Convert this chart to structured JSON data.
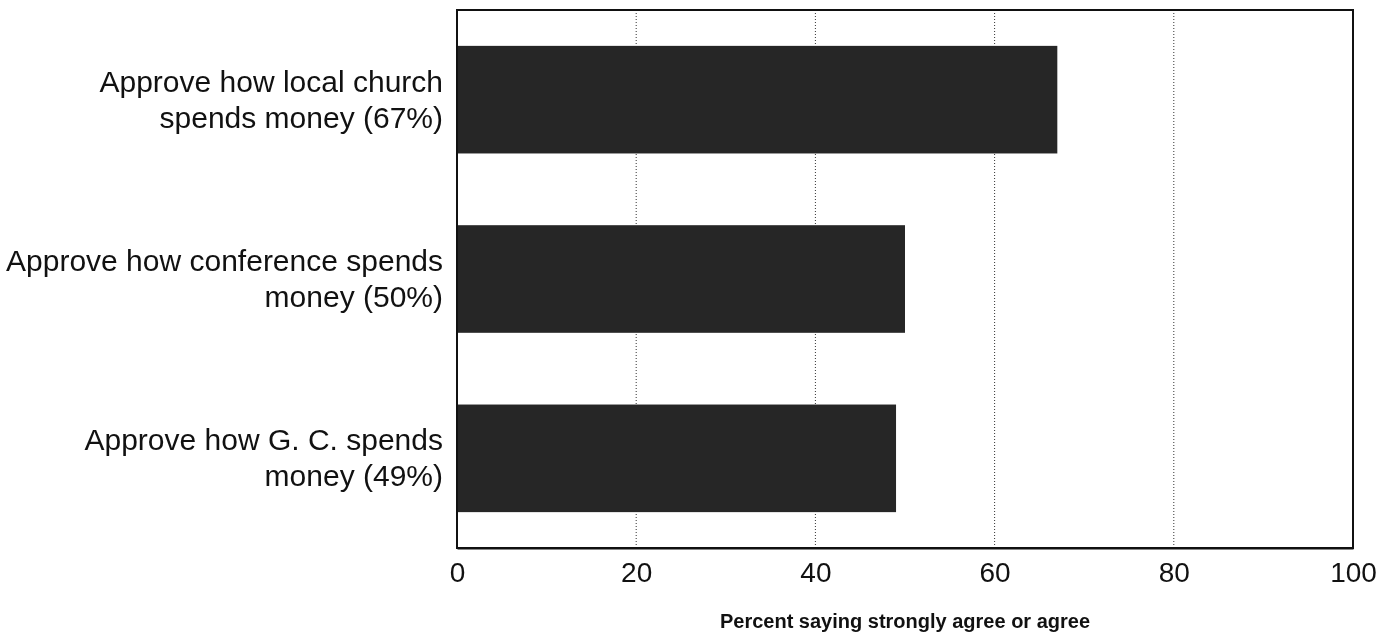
{
  "chart_data": {
    "type": "bar",
    "orientation": "horizontal",
    "categories": [
      "Approve how local church spends money (67%)",
      "Approve how conference spends money (50%)",
      "Approve how G. C. spends money (49%)"
    ],
    "values": [
      67,
      50,
      49
    ],
    "color": "#262626",
    "xlim": [
      0,
      100
    ],
    "xticks": [
      0,
      20,
      40,
      60,
      80,
      100
    ],
    "grid": "x",
    "xlabel": "Percent saying strongly agree or agree"
  }
}
